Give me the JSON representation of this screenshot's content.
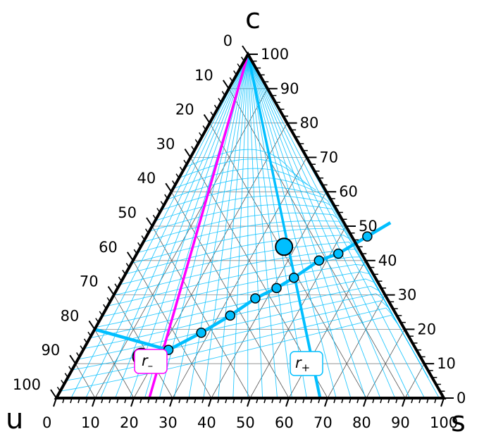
{
  "chart_data": {
    "type": "ternary",
    "corners": {
      "top": "c",
      "left": "u",
      "right": "s"
    },
    "axis_ticks": {
      "c": [
        "0",
        "10",
        "20",
        "30",
        "40",
        "50",
        "60",
        "70",
        "80",
        "90",
        "100"
      ],
      "s": [
        "0",
        "10",
        "20",
        "30",
        "40",
        "50",
        "60",
        "70",
        "80",
        "90",
        "100"
      ],
      "u": [
        "0",
        "10",
        "20",
        "30",
        "40",
        "50",
        "60",
        "70",
        "80",
        "90",
        "100"
      ]
    },
    "grid": true,
    "colors": {
      "frame": "#000000",
      "grid": "#000000",
      "field": "#00bfff",
      "main_curve": "#00bfff",
      "r_minus": "#ff00ff",
      "r_plus": "#00bfff"
    },
    "trajectory_points": [
      {
        "s": 22,
        "c": 14
      },
      {
        "s": 28,
        "c": 19
      },
      {
        "s": 33,
        "c": 24
      },
      {
        "s": 37,
        "c": 29
      },
      {
        "s": 41,
        "c": 32
      },
      {
        "s": 44,
        "c": 35
      },
      {
        "s": 48,
        "c": 40
      },
      {
        "s": 52,
        "c": 42
      },
      {
        "s": 57,
        "c": 47
      }
    ],
    "fixed_points": [
      {
        "name": "r_-",
        "s": 16,
        "c": 12,
        "color": "#ff00ff"
      },
      {
        "name": "r_+",
        "s": 37,
        "c": 44,
        "color": "#00bfff"
      }
    ],
    "lines": {
      "r_minus": {
        "from": {
          "s": 0,
          "c": 100
        },
        "to": {
          "s": 24,
          "c": 0
        }
      },
      "r_plus": {
        "from": {
          "s": 0,
          "c": 100
        },
        "to": {
          "s": 68,
          "c": 0
        }
      }
    },
    "labels": {
      "r_minus": {
        "base": "r",
        "sub": "–"
      },
      "r_plus": {
        "base": "r",
        "sub": "+"
      }
    }
  }
}
